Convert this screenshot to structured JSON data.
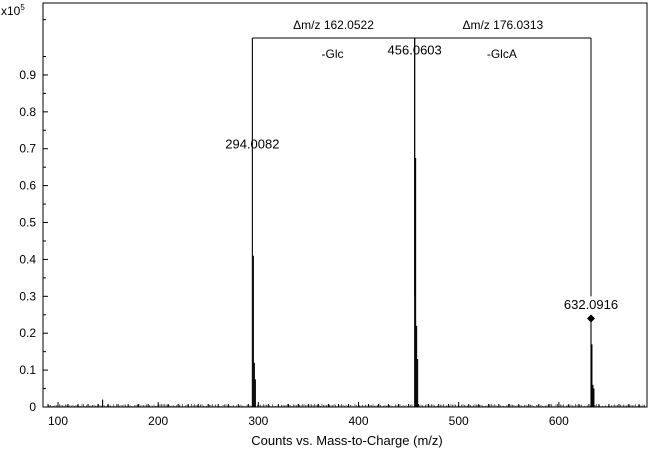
{
  "chart_data": {
    "type": "line",
    "title": "",
    "xlabel": "Counts vs. Mass-to-Charge (m/z)",
    "ylabel": "",
    "y_multiplier_label": {
      "base": "x10",
      "exponent": "5"
    },
    "xlim": [
      85,
      688
    ],
    "ylim": [
      0,
      1.095
    ],
    "xticks": [
      100,
      200,
      300,
      400,
      500,
      600
    ],
    "yticks": [
      0,
      0.1,
      0.2,
      0.3,
      0.4,
      0.5,
      0.6,
      0.7,
      0.8,
      0.9
    ],
    "ytick_labels": [
      "0",
      "0.1",
      "0.2",
      "0.3",
      "0.4",
      "0.5",
      "0.6",
      "0.7",
      "0.8",
      "0.9"
    ],
    "grid": false,
    "peaks": [
      {
        "x": 144.5,
        "y": 0.02
      },
      {
        "x": 294.0082,
        "y": 1.0
      },
      {
        "x": 295.0,
        "y": 0.41
      },
      {
        "x": 296.0,
        "y": 0.12
      },
      {
        "x": 297.0,
        "y": 0.075
      },
      {
        "x": 456.0603,
        "y": 1.0
      },
      {
        "x": 457.0,
        "y": 0.675
      },
      {
        "x": 458.0,
        "y": 0.22
      },
      {
        "x": 459.0,
        "y": 0.13
      },
      {
        "x": 632.0916,
        "y": 0.235
      },
      {
        "x": 633.0,
        "y": 0.17
      },
      {
        "x": 634.0,
        "y": 0.06
      },
      {
        "x": 635.0,
        "y": 0.05
      }
    ],
    "peak_labels": [
      {
        "text": "294.0082",
        "x": 294.0082,
        "y": 0.7
      },
      {
        "text": "456.0603",
        "x": 456.0603,
        "y": 0.955
      },
      {
        "text": "632.0916",
        "x": 632.0916,
        "y": 0.265
      }
    ],
    "marker": {
      "x": 632.0916,
      "y": 0.24,
      "symbol": "diamond"
    },
    "brackets": [
      {
        "from": 294.0082,
        "to": 456.0603,
        "y": 1.0,
        "delta_label": "Δm/z 162.0522",
        "loss_label": "-Glc"
      },
      {
        "from": 456.0603,
        "to": 632.0916,
        "y": 1.0,
        "delta_label": "Δm/z 176.0313",
        "loss_label": "-GlcA"
      }
    ]
  }
}
